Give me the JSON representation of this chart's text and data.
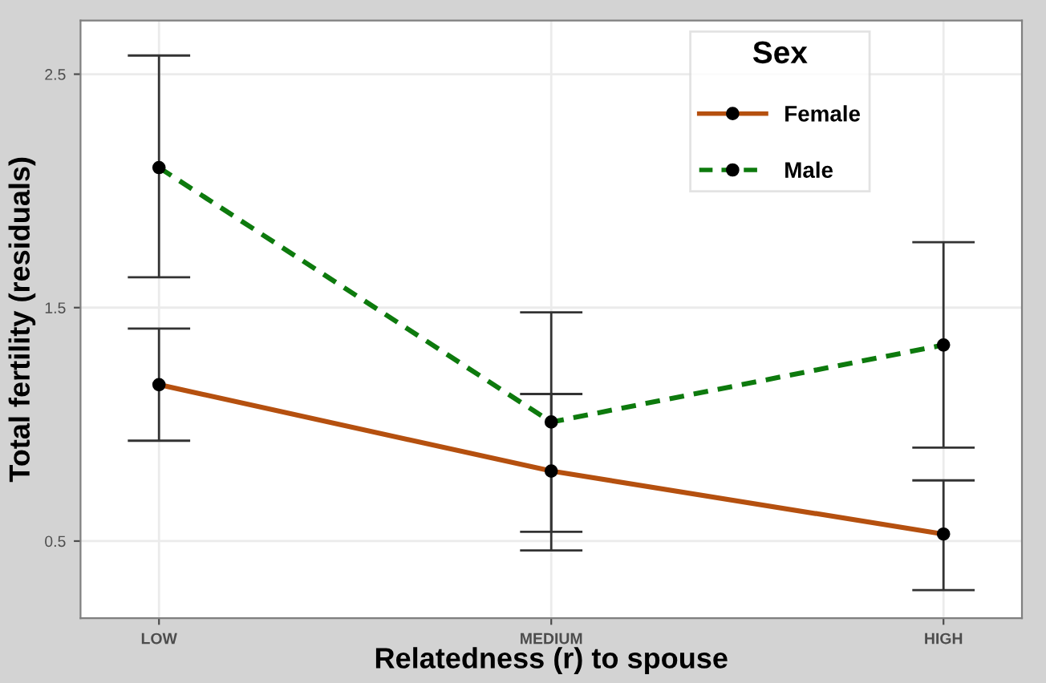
{
  "chart_data": {
    "type": "line",
    "xlabel": "Relatedness (r) to spouse",
    "ylabel": "Total fertility (residuals)",
    "legend_title": "Sex",
    "categories": [
      "LOW",
      "MEDIUM",
      "HIGH"
    ],
    "series": [
      {
        "name": "Female",
        "color": "#b5500f",
        "line_style": "solid",
        "values": [
          1.17,
          0.8,
          0.53
        ],
        "errors": [
          [
            0.93,
            1.41
          ],
          [
            0.46,
            1.13
          ],
          [
            0.29,
            0.76
          ]
        ]
      },
      {
        "name": "Male",
        "color": "#0d7a0d",
        "line_style": "dashed",
        "values": [
          2.1,
          1.01,
          1.34
        ],
        "errors": [
          [
            1.63,
            2.58
          ],
          [
            0.54,
            1.48
          ],
          [
            0.9,
            1.78
          ]
        ]
      }
    ],
    "ylim": [
      0.17,
      2.73
    ],
    "yticks": [
      0.5,
      1.5,
      2.5
    ],
    "grid": true,
    "legend": "top right",
    "marker": "circle"
  }
}
